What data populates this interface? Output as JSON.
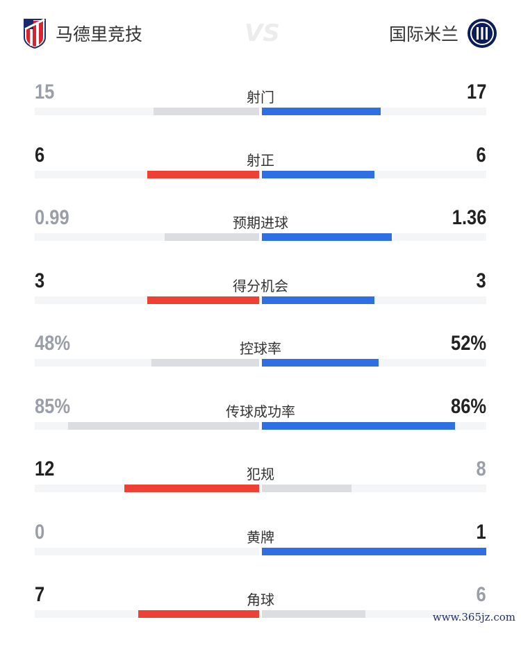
{
  "header": {
    "home_team": "马德里竞技",
    "away_team": "国际米兰",
    "vs": "VS"
  },
  "colors": {
    "home": "#ee4035",
    "away": "#2f6fe4",
    "loser": "#dcdde1",
    "win_text": "#222222",
    "lose_text": "#9a9ea8"
  },
  "stats": [
    {
      "label": "射门",
      "home": "15",
      "away": "17",
      "home_share": 0.47,
      "away_share": 0.53,
      "home_win": false,
      "away_win": true
    },
    {
      "label": "射正",
      "home": "6",
      "away": "6",
      "home_share": 0.5,
      "away_share": 0.5,
      "home_win": true,
      "away_win": true
    },
    {
      "label": "预期进球",
      "home": "0.99",
      "away": "1.36",
      "home_share": 0.42,
      "away_share": 0.58,
      "home_win": false,
      "away_win": true
    },
    {
      "label": "得分机会",
      "home": "3",
      "away": "3",
      "home_share": 0.5,
      "away_share": 0.5,
      "home_win": true,
      "away_win": true
    },
    {
      "label": "控球率",
      "home": "48%",
      "away": "52%",
      "home_share": 0.48,
      "away_share": 0.52,
      "home_win": false,
      "away_win": true
    },
    {
      "label": "传球成功率",
      "home": "85%",
      "away": "86%",
      "home_share": 0.85,
      "away_share": 0.86,
      "home_win": false,
      "away_win": true
    },
    {
      "label": "犯规",
      "home": "12",
      "away": "8",
      "home_share": 0.6,
      "away_share": 0.4,
      "home_win": true,
      "away_win": false
    },
    {
      "label": "黄牌",
      "home": "0",
      "away": "1",
      "home_share": 0,
      "away_share": 1,
      "home_win": false,
      "away_win": true
    },
    {
      "label": "角球",
      "home": "7",
      "away": "6",
      "home_share": 0.54,
      "away_share": 0.46,
      "home_win": true,
      "away_win": false
    }
  ],
  "watermark": "www.365jz.com"
}
